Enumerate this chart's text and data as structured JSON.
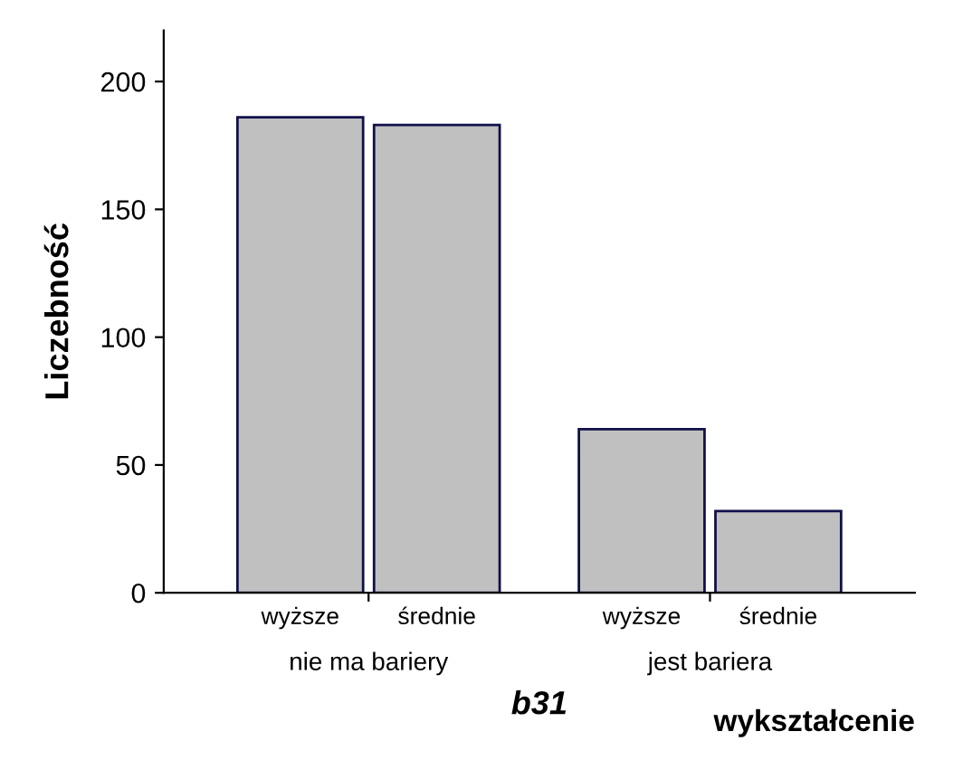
{
  "chart_data": {
    "type": "bar",
    "ylabel": "Liczebność",
    "xlabel": "b31",
    "legend_title": "wykształcenie",
    "categories": [
      "nie ma bariery",
      "jest bariera"
    ],
    "series": [
      {
        "name": "wyższe",
        "color": "#c0c0c0",
        "values": [
          186,
          64
        ]
      },
      {
        "name": "średnie",
        "color": "#c0c0c0",
        "values": [
          183,
          32
        ]
      }
    ],
    "ylim": [
      0,
      220
    ],
    "yticks": [
      0,
      50,
      100,
      150,
      200
    ]
  }
}
